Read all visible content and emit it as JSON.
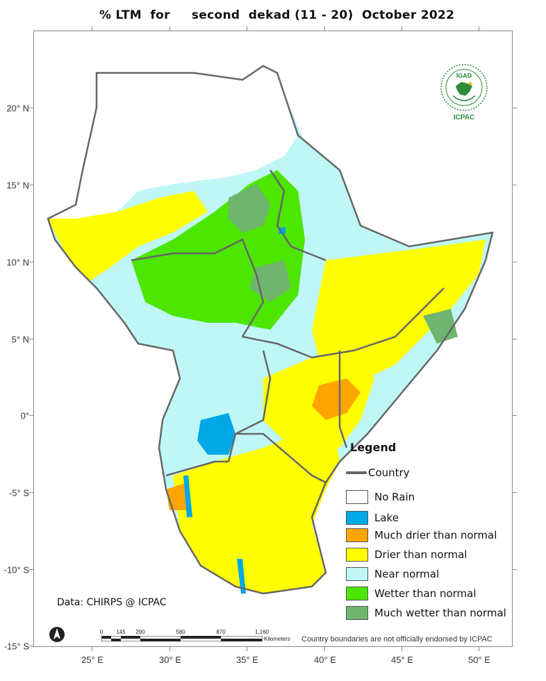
{
  "title": "% LTM  for     second  dekad (11 - 20)  October 2022",
  "axes": {
    "y_labels": [
      "20° N",
      "15° N",
      "10° N",
      "5° N",
      "0°",
      "-5° S",
      "-10° S",
      "-15° S"
    ],
    "x_labels": [
      "25° E",
      "30° E",
      "35° E",
      "40° E",
      "45° E",
      "50° E"
    ]
  },
  "legend": {
    "title": "Legend",
    "country_label": "Country",
    "items": [
      {
        "label": "No Rain",
        "color": "#ffffff"
      },
      {
        "label": "Lake",
        "color": "#00a8e6"
      },
      {
        "label": "Much drier than normal",
        "color": "#ffa500"
      },
      {
        "label": "Drier than normal",
        "color": "#ffff00"
      },
      {
        "label": "Near normal",
        "color": "#bff7f7"
      },
      {
        "label": "Wetter than normal",
        "color": "#4ce600"
      },
      {
        "label": "Much wetter than normal",
        "color": "#6fb46f"
      }
    ]
  },
  "logo": {
    "top_text": "IGAD",
    "bottom_text": "ICPAC",
    "color": "#2e8b3a"
  },
  "source": "Data: CHIRPS @ ICPAC",
  "scalebar": {
    "ticks": [
      "0",
      "145",
      "290",
      "580",
      "870",
      "1,160"
    ],
    "unit": "Kilometers"
  },
  "disclaimer": "Country boundaries are not officially endorsed by ICPAC",
  "colors": {
    "border": "#666666",
    "frame": "#8a8a8a"
  }
}
